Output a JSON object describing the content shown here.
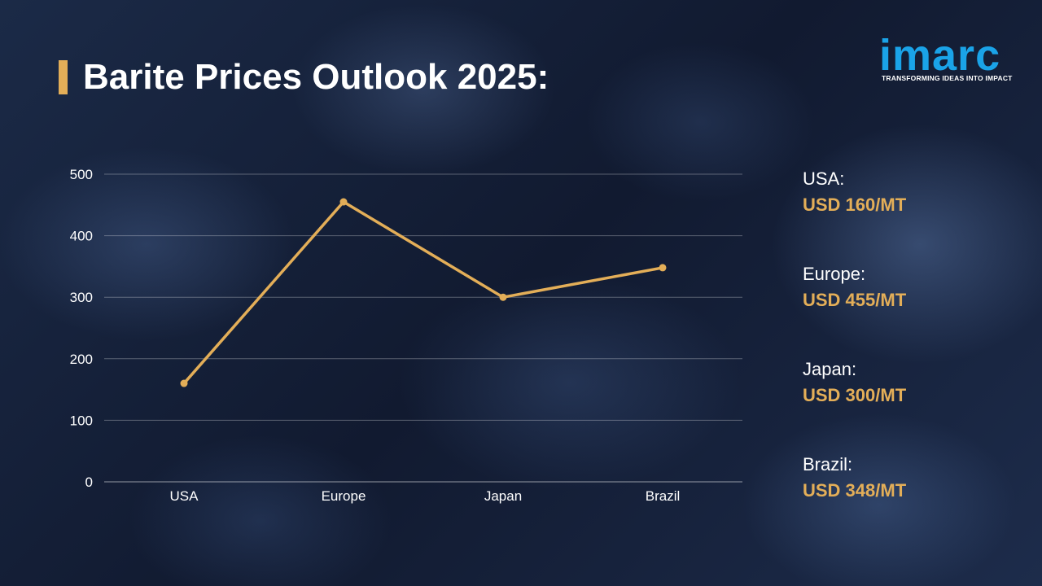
{
  "title": "Barite Prices Outlook 2025:",
  "logo": {
    "word": "imarc",
    "tagline": "TRANSFORMING IDEAS INTO IMPACT"
  },
  "colors": {
    "accent": "#e3ae58",
    "logo": "#1aa3e8",
    "text": "#ffffff"
  },
  "chart_data": {
    "type": "line",
    "categories": [
      "USA",
      "Europe",
      "Japan",
      "Brazil"
    ],
    "series": [
      {
        "values": [
          160,
          455,
          300,
          348
        ]
      }
    ],
    "ylim": [
      0,
      500
    ],
    "yticks": [
      0,
      100,
      200,
      300,
      400,
      500
    ],
    "grid": true,
    "xlabel": "",
    "ylabel": ""
  },
  "legend": [
    {
      "name": "USA:",
      "value": "USD 160/MT"
    },
    {
      "name": "Europe:",
      "value": "USD 455/MT"
    },
    {
      "name": "Japan:",
      "value": "USD 300/MT"
    },
    {
      "name": "Brazil:",
      "value": "USD 348/MT"
    }
  ]
}
